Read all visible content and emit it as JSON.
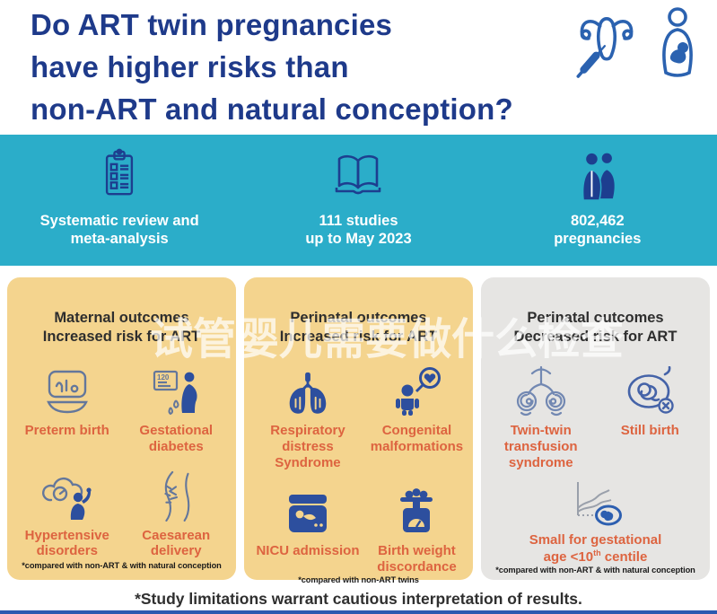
{
  "header": {
    "title_lines": [
      "Do ART twin pregnancies",
      "have higher risks than",
      "non-ART and natural conception?"
    ],
    "icons": [
      "ivf-uterus-syringe",
      "mother-baby"
    ]
  },
  "stats_band": {
    "items": [
      {
        "icon": "checklist-clipboard",
        "lines": [
          "Systematic review and",
          "meta-analysis"
        ]
      },
      {
        "icon": "open-book",
        "lines": [
          "111 studies",
          "up to May 2023"
        ]
      },
      {
        "icon": "pregnant-couple",
        "lines": [
          "802,462",
          "pregnancies"
        ]
      }
    ]
  },
  "cards": [
    {
      "title_lines": [
        "Maternal outcomes",
        "Increased risk for ART"
      ],
      "outcomes": [
        {
          "icon": "incubator-bassinet",
          "label_lines": [
            "Preterm birth"
          ]
        },
        {
          "icon": "glucose-monitor-pregnant",
          "label_lines": [
            "Gestational",
            "diabetes"
          ]
        },
        {
          "icon": "blood-pressure-pregnant",
          "label_lines": [
            "Hypertensive",
            "disorders"
          ]
        },
        {
          "icon": "abdomen-incision",
          "label_lines": [
            "Caesarean",
            "delivery"
          ]
        }
      ],
      "footnote": "*compared with non-ART & with natural conception"
    },
    {
      "title_lines": [
        "Perinatal outcomes",
        "Increased risk for ART"
      ],
      "outcomes": [
        {
          "icon": "lungs",
          "label_lines": [
            "Respiratory distress",
            "Syndrome"
          ]
        },
        {
          "icon": "baby-magnifier-heart",
          "label_lines": [
            "Congenital",
            "malformations"
          ]
        },
        {
          "icon": "nicu-incubator",
          "label_lines": [
            "NICU admission"
          ]
        },
        {
          "icon": "weighing-scale",
          "label_lines": [
            "Birth weight",
            "discordance"
          ]
        }
      ],
      "footnote": "*compared with non-ART twins"
    },
    {
      "title_lines": [
        "Perinatal outcomes",
        "Decreased risk for ART"
      ],
      "outcomes": [
        {
          "icon": "twin-fetuses-connected",
          "label_lines": [
            "Twin-twin",
            "transfusion",
            "syndrome"
          ]
        },
        {
          "icon": "fetus-cross",
          "label_lines": [
            "Still birth"
          ]
        },
        {
          "icon": "growth-chart-fetus",
          "label_line1": "Small for gestational",
          "label_line2_prefix": "age <10",
          "label_line2_sup": "th",
          "label_line2_suffix": " centile"
        }
      ],
      "footnote": "*compared with non-ART & with natural conception"
    }
  ],
  "watermark": "试管婴儿需要做什么检查",
  "footer_note": "*Study limitations warrant cautious interpretation of results.",
  "colors": {
    "navy": "#1e3a8a",
    "teal": "#2badc9",
    "card_yellow": "#f4d48e",
    "card_gray": "#e6e5e3",
    "label_orange": "#dd6440",
    "icon_blue": "#2d4f9e"
  }
}
